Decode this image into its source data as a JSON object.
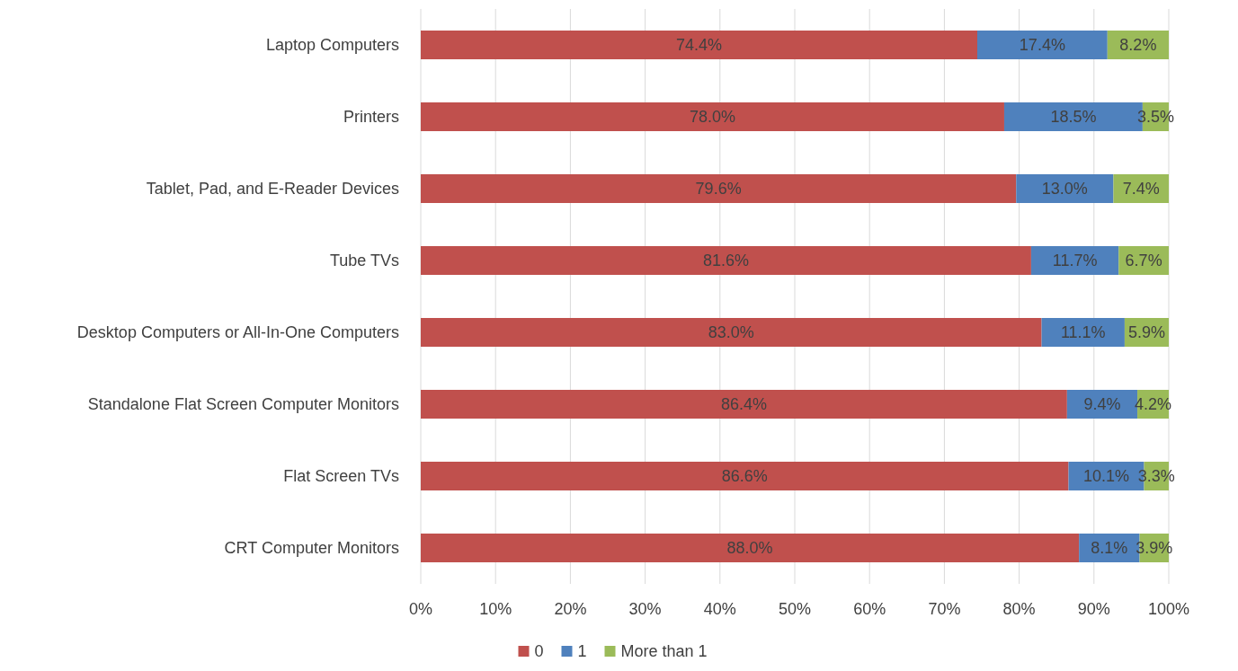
{
  "chart_data": {
    "type": "bar",
    "orientation": "horizontal",
    "stacked": true,
    "categories": [
      "Laptop Computers",
      "Printers",
      "Tablet, Pad, and E-Reader Devices",
      "Tube TVs",
      "Desktop Computers or All-In-One Computers",
      "Standalone Flat Screen Computer Monitors",
      "Flat Screen TVs",
      "CRT Computer Monitors"
    ],
    "series": [
      {
        "name": "0",
        "color": "#c0504d",
        "values": [
          74.4,
          78.0,
          79.6,
          81.6,
          83.0,
          86.4,
          86.6,
          88.0
        ],
        "value_labels": [
          "74.4%",
          "78.0%",
          "79.6%",
          "81.6%",
          "83.0%",
          "86.4%",
          "86.6%",
          "88.0%"
        ]
      },
      {
        "name": "1",
        "color": "#4f81bd",
        "values": [
          17.4,
          18.5,
          13.0,
          11.7,
          11.1,
          9.4,
          10.1,
          8.1
        ],
        "value_labels": [
          "17.4%",
          "18.5%",
          "13.0%",
          "11.7%",
          "11.1%",
          "9.4%",
          "10.1%",
          "8.1%"
        ]
      },
      {
        "name": "More than 1",
        "color": "#9bbb59",
        "values": [
          8.2,
          3.5,
          7.4,
          6.7,
          5.9,
          4.2,
          3.3,
          3.9
        ],
        "value_labels": [
          "8.2%",
          "3.5%",
          "7.4%",
          "6.7%",
          "5.9%",
          "4.2%",
          "3.3%",
          "3.9%"
        ]
      }
    ],
    "xlim": [
      0,
      100
    ],
    "xticks": [
      {
        "value": 0,
        "label": "0%"
      },
      {
        "value": 10,
        "label": "10%"
      },
      {
        "value": 20,
        "label": "20%"
      },
      {
        "value": 30,
        "label": "30%"
      },
      {
        "value": 40,
        "label": "40%"
      },
      {
        "value": 50,
        "label": "50%"
      },
      {
        "value": 60,
        "label": "60%"
      },
      {
        "value": 70,
        "label": "70%"
      },
      {
        "value": 80,
        "label": "80%"
      },
      {
        "value": 90,
        "label": "90%"
      },
      {
        "value": 100,
        "label": "100%"
      }
    ],
    "grid": "x",
    "legend": "bottom"
  }
}
